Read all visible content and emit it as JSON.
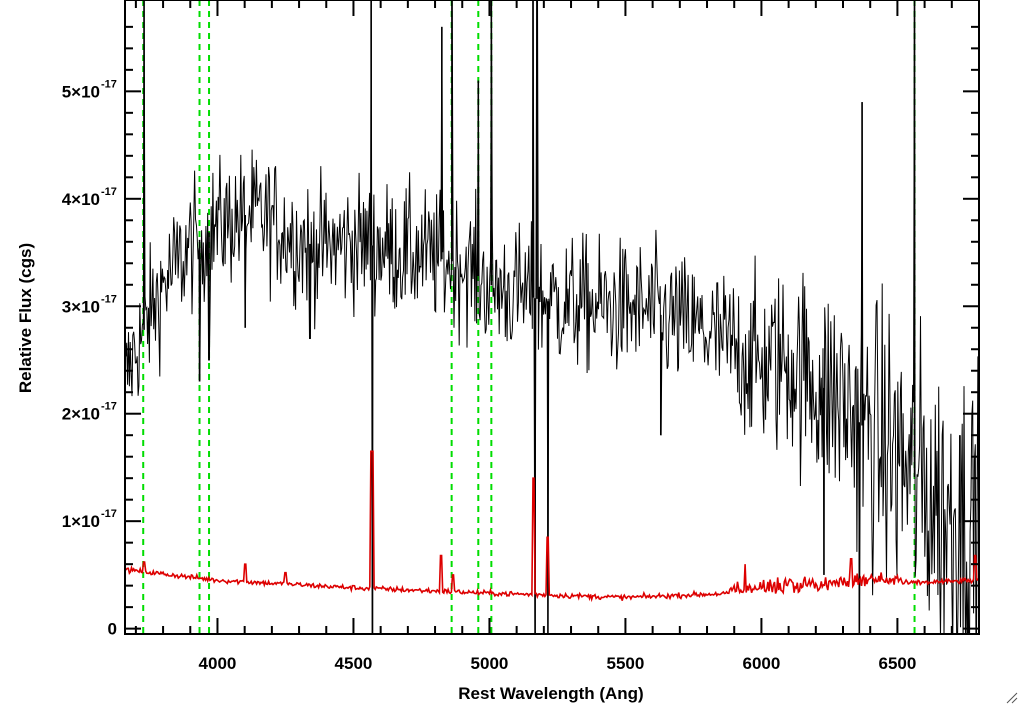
{
  "chart_data": {
    "type": "line",
    "title": "",
    "xlabel": "Rest Wavelength (Ang)",
    "ylabel": "Relative Flux (cgs)",
    "xlim": [
      3660,
      6800
    ],
    "ylim": [
      -5e-19,
      5.85e-17
    ],
    "x_ticks": [
      {
        "value": 4000,
        "label": "4000"
      },
      {
        "value": 4500,
        "label": "4500"
      },
      {
        "value": 5000,
        "label": "5000"
      },
      {
        "value": 5500,
        "label": "5500"
      },
      {
        "value": 6000,
        "label": "6000"
      },
      {
        "value": 6500,
        "label": "6500"
      }
    ],
    "y_ticks": [
      {
        "value": 0,
        "mantissa": "0",
        "exponent": ""
      },
      {
        "value": 1e-17,
        "mantissa": "1×10",
        "exponent": "-17"
      },
      {
        "value": 2e-17,
        "mantissa": "2×10",
        "exponent": "-17"
      },
      {
        "value": 3e-17,
        "mantissa": "3×10",
        "exponent": "-17"
      },
      {
        "value": 4e-17,
        "mantissa": "4×10",
        "exponent": "-17"
      },
      {
        "value": 5e-17,
        "mantissa": "5×10",
        "exponent": "-17"
      }
    ],
    "grid": false,
    "series": [
      {
        "role": "spectrum",
        "color": "#000000",
        "continuum": [
          {
            "x": 3660,
            "y": 2.3e-17
          },
          {
            "x": 3700,
            "y": 2.6e-17
          },
          {
            "x": 3800,
            "y": 3.2e-17
          },
          {
            "x": 3900,
            "y": 3.55e-17
          },
          {
            "x": 4000,
            "y": 3.75e-17
          },
          {
            "x": 4100,
            "y": 3.85e-17
          },
          {
            "x": 4200,
            "y": 3.8e-17
          },
          {
            "x": 4300,
            "y": 3.6e-17
          },
          {
            "x": 4400,
            "y": 3.55e-17
          },
          {
            "x": 4500,
            "y": 3.6e-17
          },
          {
            "x": 4700,
            "y": 3.5e-17
          },
          {
            "x": 4900,
            "y": 3.4e-17
          },
          {
            "x": 5000,
            "y": 3.2e-17
          },
          {
            "x": 5200,
            "y": 3.05e-17
          },
          {
            "x": 5400,
            "y": 3e-17
          },
          {
            "x": 5600,
            "y": 2.95e-17
          },
          {
            "x": 5800,
            "y": 2.75e-17
          },
          {
            "x": 6000,
            "y": 2.45e-17
          },
          {
            "x": 6100,
            "y": 2.5e-17
          },
          {
            "x": 6200,
            "y": 2.3e-17
          },
          {
            "x": 6300,
            "y": 2.1e-17
          },
          {
            "x": 6400,
            "y": 1.8e-17
          },
          {
            "x": 6500,
            "y": 1.6e-17
          },
          {
            "x": 6600,
            "y": 1.3e-17
          },
          {
            "x": 6700,
            "y": 1e-17
          },
          {
            "x": 6800,
            "y": 9.5e-18
          }
        ],
        "noise_sigma": [
          {
            "x": 3660,
            "y": 3e-18
          },
          {
            "x": 5800,
            "y": 3.2e-18
          },
          {
            "x": 6200,
            "y": 5e-18
          },
          {
            "x": 6500,
            "y": 7e-18
          },
          {
            "x": 6800,
            "y": 7.5e-18
          }
        ],
        "features": [
          {
            "x": 3730,
            "y": 5.9e-17,
            "type": "spike"
          },
          {
            "x": 3934,
            "y": 2.3e-17,
            "type": "dip"
          },
          {
            "x": 3969,
            "y": 2.5e-17,
            "type": "dip"
          },
          {
            "x": 4102,
            "y": 2.8e-17,
            "type": "dip"
          },
          {
            "x": 4340,
            "y": 2.7e-17,
            "type": "dip"
          },
          {
            "x": 4565,
            "y": 5.9e-17,
            "type": "spike"
          },
          {
            "x": 4570,
            "y": -5e-19,
            "type": "dip"
          },
          {
            "x": 4825,
            "y": 5.6e-17,
            "type": "spike"
          },
          {
            "x": 4862,
            "y": 5.9e-17,
            "type": "spike"
          },
          {
            "x": 4959,
            "y": 5.1e-17,
            "type": "spike"
          },
          {
            "x": 5007,
            "y": 5.9e-17,
            "type": "spike"
          },
          {
            "x": 5160,
            "y": 5.9e-17,
            "type": "spike"
          },
          {
            "x": 5168,
            "y": -5e-19,
            "type": "dip"
          },
          {
            "x": 5175,
            "y": 5.9e-17,
            "type": "spike"
          },
          {
            "x": 5215,
            "y": -5e-19,
            "type": "dip"
          },
          {
            "x": 5630,
            "y": 1.8e-17,
            "type": "dip"
          },
          {
            "x": 6230,
            "y": 5e-18,
            "type": "dip"
          },
          {
            "x": 6360,
            "y": -5e-19,
            "type": "dip"
          },
          {
            "x": 6370,
            "y": 4.9e-17,
            "type": "spike"
          },
          {
            "x": 6563,
            "y": 5.9e-17,
            "type": "spike"
          },
          {
            "x": 6730,
            "y": 1.8e-17,
            "type": "spike"
          }
        ]
      },
      {
        "role": "error",
        "color": "#dd0000",
        "continuum": [
          {
            "x": 3660,
            "y": 5.5e-18
          },
          {
            "x": 4000,
            "y": 4.5e-18
          },
          {
            "x": 4500,
            "y": 3.8e-18
          },
          {
            "x": 5000,
            "y": 3.3e-18
          },
          {
            "x": 5500,
            "y": 2.9e-18
          },
          {
            "x": 5900,
            "y": 3.3e-18
          },
          {
            "x": 6200,
            "y": 3.6e-18
          },
          {
            "x": 6500,
            "y": 4.2e-18
          },
          {
            "x": 6800,
            "y": 4.5e-18
          }
        ],
        "features": [
          {
            "x": 3730,
            "y": 6.2e-18,
            "width": 4
          },
          {
            "x": 4102,
            "y": 6e-18,
            "width": 4
          },
          {
            "x": 4250,
            "y": 5.2e-18,
            "width": 4
          },
          {
            "x": 4568,
            "y": 1.65e-17,
            "width": 6
          },
          {
            "x": 4823,
            "y": 6.8e-18,
            "width": 5
          },
          {
            "x": 4865,
            "y": 5e-18,
            "width": 4
          },
          {
            "x": 5162,
            "y": 1.4e-17,
            "width": 4
          },
          {
            "x": 5215,
            "y": 8.5e-18,
            "width": 4
          },
          {
            "x": 5940,
            "y": 6e-18,
            "width": 4
          },
          {
            "x": 6330,
            "y": 6.5e-18,
            "width": 4
          },
          {
            "x": 6785,
            "y": 6.8e-18,
            "width": 5
          }
        ]
      }
    ],
    "reference_lines": [
      {
        "x": 3727,
        "color": "#00dd00",
        "style": "dashed"
      },
      {
        "x": 3934,
        "color": "#00dd00",
        "style": "dashed"
      },
      {
        "x": 3969,
        "color": "#00dd00",
        "style": "dashed"
      },
      {
        "x": 4861,
        "color": "#00dd00",
        "style": "dashed"
      },
      {
        "x": 4959,
        "color": "#00dd00",
        "style": "dashed"
      },
      {
        "x": 5007,
        "color": "#00dd00",
        "style": "dashed"
      },
      {
        "x": 6563,
        "color": "#00dd00",
        "style": "dashed"
      }
    ]
  }
}
